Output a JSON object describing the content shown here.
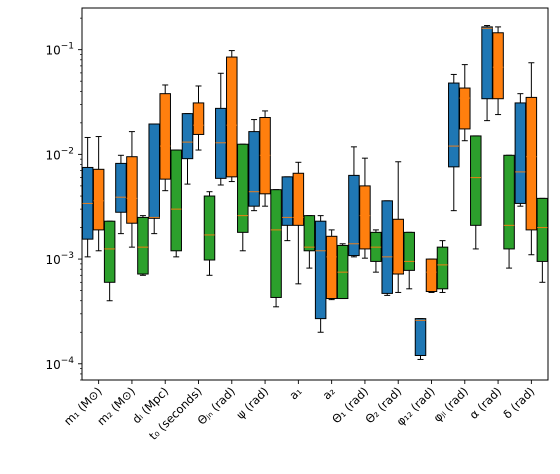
{
  "chart_data": {
    "type": "box",
    "title": "",
    "xlabel": "",
    "ylabel": "",
    "yscale": "log",
    "ylim": [
      7e-05,
      0.25
    ],
    "grid": false,
    "legend": "none",
    "y_ticks": [
      {
        "value": 0.0001,
        "label": "10",
        "exp": "−4"
      },
      {
        "value": 0.001,
        "label": "10",
        "exp": "−3"
      },
      {
        "value": 0.01,
        "label": "10",
        "exp": "−2"
      },
      {
        "value": 0.1,
        "label": "10",
        "exp": "−1"
      }
    ],
    "categories": [
      "m₁ (M⊙)",
      "m₂ (M⊙)",
      "dₗ (Mpc)",
      "t₀ (seconds)",
      "Θⱼₙ (rad)",
      "ψ (rad)",
      "a₁",
      "a₂",
      "Θ₁ (rad)",
      "Θ₂ (rad)",
      "φ₁₂ (rad)",
      "φⱼₗ (rad)",
      "α (rad)",
      "δ (rad)"
    ],
    "series": [
      {
        "color": "#1f77b4",
        "boxes": [
          {
            "whislo": 0.00105,
            "q1": 0.00155,
            "med": 0.0034,
            "q3": 0.0075,
            "whishi": 0.0145
          },
          {
            "whislo": 0.00175,
            "q1": 0.0028,
            "med": 0.0039,
            "q3": 0.0082,
            "whishi": 0.0098
          },
          {
            "whislo": 0.00175,
            "q1": 0.00245,
            "med": 0.0025,
            "q3": 0.0195,
            "whishi": 0.0195
          },
          {
            "whislo": 0.0052,
            "q1": 0.0091,
            "med": 0.0131,
            "q3": 0.0245,
            "whishi": 0.0245
          },
          {
            "whislo": 0.0051,
            "q1": 0.0059,
            "med": 0.0129,
            "q3": 0.0275,
            "whishi": 0.0595
          },
          {
            "whislo": 0.0029,
            "q1": 0.0032,
            "med": 0.0044,
            "q3": 0.0165,
            "whishi": 0.0215
          },
          {
            "whislo": 0.0015,
            "q1": 0.0021,
            "med": 0.0025,
            "q3": 0.0061,
            "whishi": 0.0061
          },
          {
            "whislo": 0.0002,
            "q1": 0.00027,
            "med": 0.0012,
            "q3": 0.0023,
            "whishi": 0.0026
          },
          {
            "whislo": 0.00105,
            "q1": 0.00108,
            "med": 0.0014,
            "q3": 0.0063,
            "whishi": 0.0118
          },
          {
            "whislo": 0.00045,
            "q1": 0.00047,
            "med": 0.00105,
            "q3": 0.0036,
            "whishi": 0.0036
          },
          {
            "whislo": 0.00011,
            "q1": 0.00012,
            "med": 0.00026,
            "q3": 0.00027,
            "whishi": 0.00027
          },
          {
            "whislo": 0.0029,
            "q1": 0.0076,
            "med": 0.012,
            "q3": 0.048,
            "whishi": 0.058
          },
          {
            "whislo": 0.021,
            "q1": 0.034,
            "med": 0.16,
            "q3": 0.165,
            "whishi": 0.17
          },
          {
            "whislo": 0.0032,
            "q1": 0.0034,
            "med": 0.0068,
            "q3": 0.031,
            "whishi": 0.038
          }
        ]
      },
      {
        "color": "#ff7f0e",
        "boxes": [
          {
            "whislo": 0.0012,
            "q1": 0.0019,
            "med": 0.0036,
            "q3": 0.0072,
            "whishi": 0.0148
          },
          {
            "whislo": 0.0013,
            "q1": 0.0022,
            "med": 0.0038,
            "q3": 0.0095,
            "whishi": 0.0165
          },
          {
            "whislo": 0.0045,
            "q1": 0.0058,
            "med": 0.012,
            "q3": 0.038,
            "whishi": 0.046
          },
          {
            "whislo": 0.011,
            "q1": 0.0155,
            "med": 0.019,
            "q3": 0.031,
            "whishi": 0.045
          },
          {
            "whislo": 0.0055,
            "q1": 0.0061,
            "med": 0.019,
            "q3": 0.085,
            "whishi": 0.098
          },
          {
            "whislo": 0.0032,
            "q1": 0.0042,
            "med": 0.0098,
            "q3": 0.0225,
            "whishi": 0.026
          },
          {
            "whislo": 0.00058,
            "q1": 0.0021,
            "med": 0.0025,
            "q3": 0.0066,
            "whishi": 0.0084
          },
          {
            "whislo": 0.00041,
            "q1": 0.00042,
            "med": 0.00105,
            "q3": 0.00165,
            "whishi": 0.0019
          },
          {
            "whislo": 0.00102,
            "q1": 0.00125,
            "med": 0.0026,
            "q3": 0.005,
            "whishi": 0.0092
          },
          {
            "whislo": 0.00048,
            "q1": 0.00072,
            "med": 0.00075,
            "q3": 0.0024,
            "whishi": 0.0085
          },
          {
            "whislo": 0.00048,
            "q1": 0.00049,
            "med": 0.00075,
            "q3": 0.001,
            "whishi": 0.001
          },
          {
            "whislo": 0.0135,
            "q1": 0.0175,
            "med": 0.0345,
            "q3": 0.043,
            "whishi": 0.072
          },
          {
            "whislo": 0.024,
            "q1": 0.034,
            "med": 0.068,
            "q3": 0.145,
            "whishi": 0.165
          },
          {
            "whislo": 0.0011,
            "q1": 0.0019,
            "med": 0.0095,
            "q3": 0.035,
            "whishi": 0.075
          }
        ]
      },
      {
        "color": "#2ca02c",
        "boxes": [
          {
            "whislo": 0.0004,
            "q1": 0.0006,
            "med": 0.00125,
            "q3": 0.0023,
            "whishi": 0.0023
          },
          {
            "whislo": 0.0007,
            "q1": 0.00072,
            "med": 0.0013,
            "q3": 0.0025,
            "whishi": 0.0026
          },
          {
            "whislo": 0.00105,
            "q1": 0.0012,
            "med": 0.003,
            "q3": 0.011,
            "whishi": 0.011
          },
          {
            "whislo": 0.0007,
            "q1": 0.00098,
            "med": 0.0017,
            "q3": 0.004,
            "whishi": 0.0044
          },
          {
            "whislo": 0.0012,
            "q1": 0.0018,
            "med": 0.0026,
            "q3": 0.0125,
            "whishi": 0.0125
          },
          {
            "whislo": 0.00035,
            "q1": 0.00043,
            "med": 0.0019,
            "q3": 0.0046,
            "whishi": 0.0046
          },
          {
            "whislo": 0.00082,
            "q1": 0.0012,
            "med": 0.0013,
            "q3": 0.0026,
            "whishi": 0.0026
          },
          {
            "whislo": 0.00042,
            "q1": 0.00042,
            "med": 0.00075,
            "q3": 0.00135,
            "whishi": 0.0014
          },
          {
            "whislo": 0.00075,
            "q1": 0.00095,
            "med": 0.0013,
            "q3": 0.0018,
            "whishi": 0.0019
          },
          {
            "whislo": 0.00052,
            "q1": 0.00078,
            "med": 0.00095,
            "q3": 0.0018,
            "whishi": 0.0018
          },
          {
            "whislo": 0.00048,
            "q1": 0.00052,
            "med": 0.00088,
            "q3": 0.0013,
            "whishi": 0.0015
          },
          {
            "whislo": 0.00125,
            "q1": 0.0021,
            "med": 0.006,
            "q3": 0.015,
            "whishi": 0.015
          },
          {
            "whislo": 0.00082,
            "q1": 0.00125,
            "med": 0.0021,
            "q3": 0.0098,
            "whishi": 0.0098
          },
          {
            "whislo": 0.0006,
            "q1": 0.00095,
            "med": 0.002,
            "q3": 0.0038,
            "whishi": 0.0038
          }
        ]
      }
    ]
  }
}
